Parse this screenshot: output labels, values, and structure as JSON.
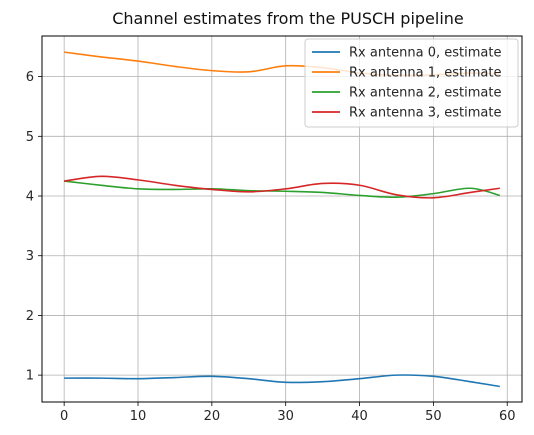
{
  "chart_data": {
    "type": "line",
    "title": "Channel estimates from the PUSCH pipeline",
    "xlabel": "",
    "ylabel": "",
    "xlim": [
      -3,
      62
    ],
    "ylim": [
      0.55,
      6.68
    ],
    "x_ticks": [
      0,
      10,
      20,
      30,
      40,
      50,
      60
    ],
    "y_ticks": [
      1,
      2,
      3,
      4,
      5,
      6
    ],
    "grid": true,
    "legend_position": "top-right",
    "x": [
      0,
      5,
      10,
      15,
      20,
      25,
      30,
      35,
      40,
      45,
      50,
      55,
      59
    ],
    "series": [
      {
        "name": "Rx antenna 0, estimate",
        "color": "#1f77b4",
        "values": [
          0.95,
          0.95,
          0.94,
          0.96,
          0.98,
          0.94,
          0.88,
          0.89,
          0.94,
          1.0,
          0.98,
          0.89,
          0.81
        ]
      },
      {
        "name": "Rx antenna 1, estimate",
        "color": "#ff7f0e",
        "values": [
          6.41,
          6.33,
          6.26,
          6.17,
          6.1,
          6.08,
          6.18,
          6.15,
          6.06,
          6.02,
          6.03,
          6.06,
          6.04
        ]
      },
      {
        "name": "Rx antenna 2, estimate",
        "color": "#2ca02c",
        "values": [
          4.25,
          4.18,
          4.12,
          4.11,
          4.12,
          4.09,
          4.08,
          4.06,
          4.01,
          3.98,
          4.04,
          4.13,
          4.01
        ]
      },
      {
        "name": "Rx antenna 3, estimate",
        "color": "#d62728",
        "values": [
          4.25,
          4.33,
          4.27,
          4.18,
          4.11,
          4.07,
          4.12,
          4.21,
          4.18,
          4.02,
          3.97,
          4.06,
          4.13
        ]
      }
    ]
  }
}
